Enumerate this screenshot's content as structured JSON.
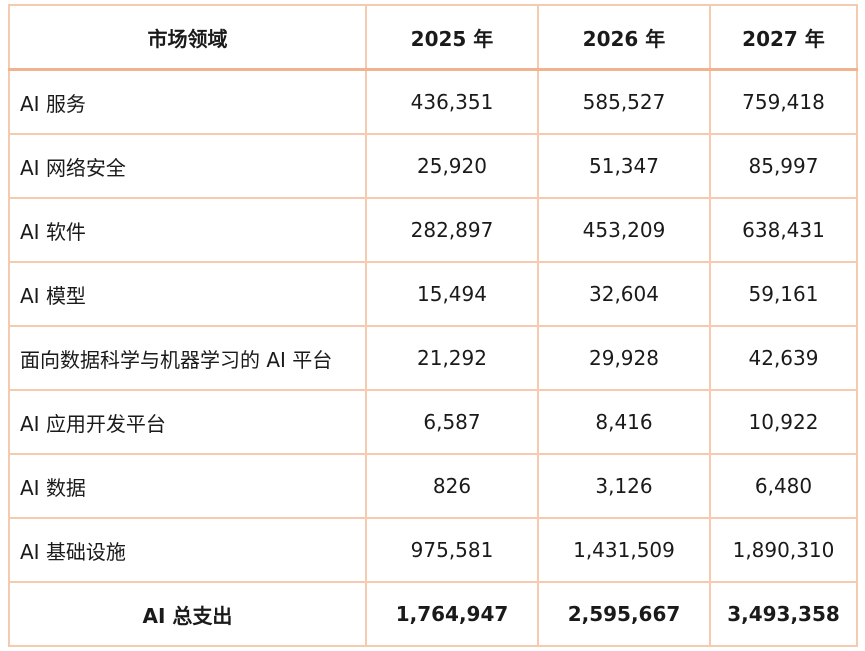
{
  "table": {
    "headers": [
      "市场领域",
      "2025 年",
      "2026 年",
      "2027 年"
    ],
    "rows": [
      {
        "label": "AI 服务",
        "values": [
          "436,351",
          "585,527",
          "759,418"
        ]
      },
      {
        "label": "AI 网络安全",
        "values": [
          "25,920",
          "51,347",
          "85,997"
        ]
      },
      {
        "label": "AI 软件",
        "values": [
          "282,897",
          "453,209",
          "638,431"
        ]
      },
      {
        "label": "AI 模型",
        "values": [
          "15,494",
          "32,604",
          "59,161"
        ]
      },
      {
        "label": "面向数据科学与机器学习的 AI 平台",
        "values": [
          "21,292",
          "29,928",
          "42,639"
        ]
      },
      {
        "label": "AI 应用开发平台",
        "values": [
          "6,587",
          "8,416",
          "10,922"
        ]
      },
      {
        "label": "AI 数据",
        "values": [
          "826",
          "3,126",
          "6,480"
        ]
      },
      {
        "label": "AI 基础设施",
        "values": [
          "975,581",
          "1,431,509",
          "1,890,310"
        ]
      }
    ],
    "total": {
      "label": "AI 总支出",
      "values": [
        "1,764,947",
        "2,595,667",
        "3,493,358"
      ]
    }
  },
  "colors": {
    "border": "#f4cbb0",
    "header_rule": "#f0b28f"
  }
}
